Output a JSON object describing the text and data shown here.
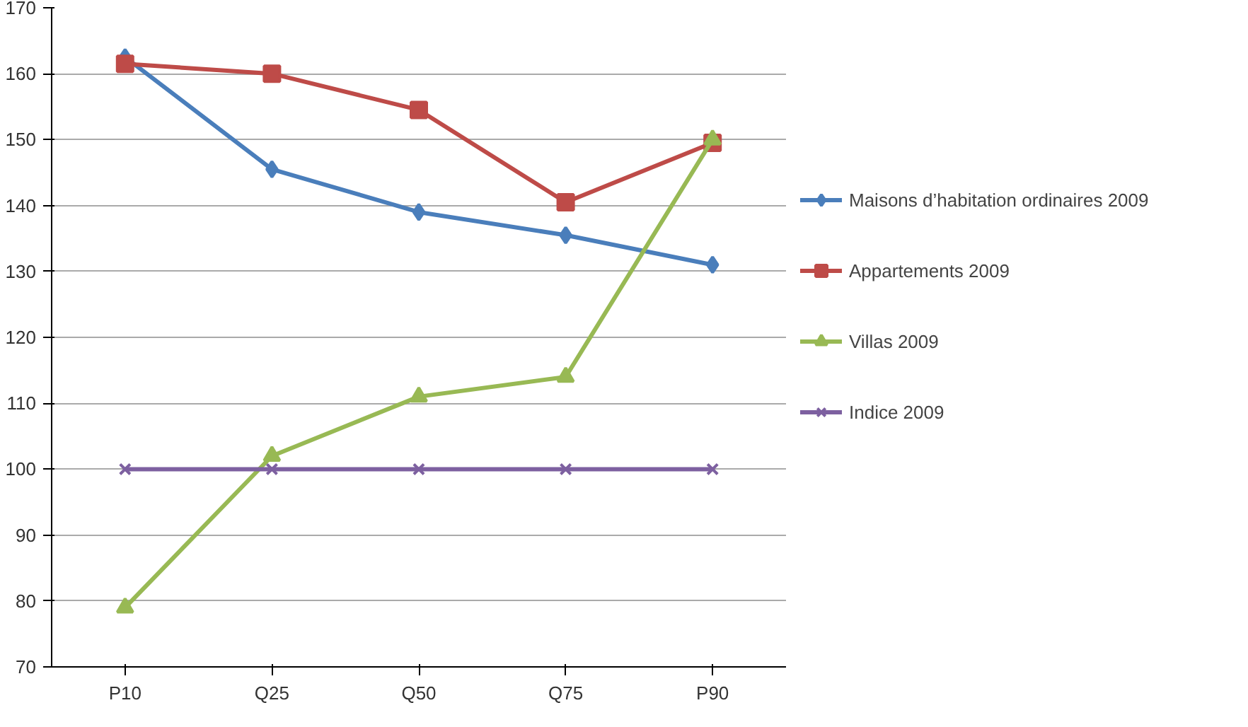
{
  "chart_data": {
    "type": "line",
    "categories": [
      "P10",
      "Q25",
      "Q50",
      "Q75",
      "P90"
    ],
    "series": [
      {
        "name": "Maisons d’habitation ordinaires 2009",
        "color": "#4a7ebb",
        "marker": "diamond",
        "values": [
          162.5,
          145.5,
          139,
          135.5,
          131
        ]
      },
      {
        "name": "Appartements 2009",
        "color": "#be4b48",
        "marker": "square",
        "values": [
          161.5,
          160,
          154.5,
          140.5,
          149.5
        ]
      },
      {
        "name": "Villas 2009",
        "color": "#98b954",
        "marker": "triangle",
        "values": [
          79,
          102,
          111,
          114,
          150
        ]
      },
      {
        "name": "Indice 2009",
        "color": "#7d60a0",
        "marker": "cross",
        "values": [
          100,
          100,
          100,
          100,
          100
        ]
      }
    ],
    "ylim": [
      70,
      170
    ],
    "yticks": [
      70,
      80,
      90,
      100,
      110,
      120,
      130,
      140,
      150,
      160,
      170
    ],
    "grid": "y",
    "legend": "right"
  }
}
